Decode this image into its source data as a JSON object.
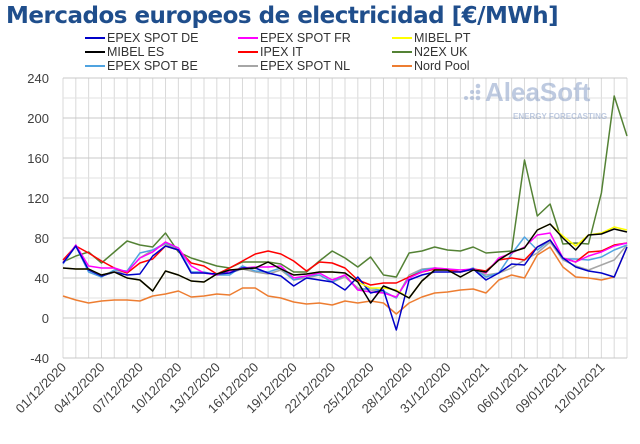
{
  "chart_data": {
    "type": "line",
    "title": "Mercados europeos de electricidad [€/MWh]",
    "watermark": {
      "brand": "AleaSoft",
      "tagline": "ENERGY FORECASTING"
    },
    "ylim": [
      -40,
      240
    ],
    "yticks": [
      -40,
      0,
      40,
      80,
      120,
      160,
      200,
      240
    ],
    "grid": true,
    "legend": "top",
    "xticklabels": [
      "01/12/2020",
      "04/12/2020",
      "07/12/2020",
      "10/12/2020",
      "13/12/2020",
      "16/12/2020",
      "19/12/2020",
      "22/12/2020",
      "25/12/2020",
      "28/12/2020",
      "31/12/2020",
      "03/01/2021",
      "06/01/2021",
      "09/01/2021",
      "12/01/2021"
    ],
    "x": [
      "01/12/2020",
      "02/12/2020",
      "03/12/2020",
      "04/12/2020",
      "05/12/2020",
      "06/12/2020",
      "07/12/2020",
      "08/12/2020",
      "09/12/2020",
      "10/12/2020",
      "11/12/2020",
      "12/12/2020",
      "13/12/2020",
      "14/12/2020",
      "15/12/2020",
      "16/12/2020",
      "17/12/2020",
      "18/12/2020",
      "19/12/2020",
      "20/12/2020",
      "21/12/2020",
      "22/12/2020",
      "23/12/2020",
      "24/12/2020",
      "25/12/2020",
      "26/12/2020",
      "27/12/2020",
      "28/12/2020",
      "29/12/2020",
      "30/12/2020",
      "31/12/2020",
      "01/01/2021",
      "02/01/2021",
      "03/01/2021",
      "04/01/2021",
      "05/01/2021",
      "06/01/2021",
      "07/01/2021",
      "08/01/2021",
      "09/01/2021",
      "10/01/2021",
      "11/01/2021",
      "12/01/2021",
      "13/01/2021",
      "14/01/2021"
    ],
    "series": [
      {
        "name": "EPEX SPOT DE",
        "color": "#0000c8",
        "values": [
          55,
          72,
          48,
          42,
          46,
          43,
          44,
          62,
          72,
          68,
          45,
          45,
          44,
          45,
          50,
          50,
          45,
          42,
          32,
          40,
          38,
          36,
          28,
          41,
          25,
          28,
          -12,
          38,
          43,
          46,
          46,
          46,
          49,
          38,
          45,
          54,
          53,
          71,
          78,
          60,
          51,
          47,
          45,
          41,
          71
        ]
      },
      {
        "name": "EPEX SPOT FR",
        "color": "#ff00ff",
        "values": [
          55,
          73,
          52,
          50,
          50,
          46,
          60,
          66,
          76,
          70,
          52,
          45,
          43,
          47,
          50,
          51,
          51,
          52,
          40,
          42,
          45,
          38,
          43,
          28,
          26,
          25,
          21,
          40,
          46,
          50,
          49,
          48,
          49,
          45,
          60,
          65,
          71,
          83,
          85,
          60,
          56,
          62,
          66,
          72,
          75
        ]
      },
      {
        "name": "MIBEL PT",
        "color": "#ffff00",
        "values": [
          50,
          49,
          49,
          43,
          46,
          40,
          38,
          27,
          47,
          43,
          37,
          36,
          44,
          48,
          49,
          50,
          56,
          49,
          43,
          44,
          46,
          46,
          45,
          36,
          30,
          30,
          28,
          20,
          37,
          48,
          48,
          41,
          48,
          46,
          58,
          66,
          70,
          88,
          94,
          82,
          72,
          83,
          85,
          91,
          88
        ]
      },
      {
        "name": "MIBEL ES",
        "color": "#000000",
        "values": [
          50,
          49,
          49,
          43,
          46,
          40,
          38,
          27,
          47,
          43,
          37,
          36,
          44,
          48,
          49,
          50,
          56,
          49,
          43,
          44,
          46,
          46,
          45,
          36,
          15,
          32,
          27,
          20,
          37,
          48,
          48,
          41,
          48,
          46,
          58,
          66,
          70,
          88,
          94,
          80,
          68,
          83,
          84,
          89,
          86
        ]
      },
      {
        "name": "IPEX IT",
        "color": "#ff0000",
        "values": [
          58,
          72,
          65,
          57,
          50,
          45,
          55,
          59,
          72,
          68,
          55,
          52,
          44,
          50,
          57,
          64,
          67,
          64,
          57,
          47,
          56,
          55,
          50,
          38,
          33,
          35,
          35,
          41,
          46,
          49,
          48,
          46,
          49,
          47,
          58,
          60,
          58,
          71,
          78,
          60,
          56,
          66,
          67,
          73,
          75
        ]
      },
      {
        "name": "N2EX UK",
        "color": "#548235",
        "values": [
          56,
          62,
          66,
          55,
          66,
          77,
          73,
          71,
          85,
          66,
          60,
          56,
          52,
          50,
          56,
          56,
          56,
          54,
          46,
          46,
          57,
          67,
          60,
          51,
          61,
          43,
          41,
          65,
          67,
          71,
          68,
          67,
          71,
          65,
          66,
          67,
          158,
          102,
          114,
          74,
          75,
          74,
          125,
          222,
          182
        ]
      },
      {
        "name": "EPEX SPOT BE",
        "color": "#4fa3e0",
        "values": [
          54,
          72,
          46,
          41,
          48,
          47,
          65,
          68,
          75,
          70,
          46,
          46,
          43,
          43,
          52,
          47,
          46,
          50,
          38,
          42,
          43,
          36,
          43,
          28,
          30,
          27,
          20,
          41,
          48,
          50,
          48,
          46,
          50,
          41,
          45,
          64,
          81,
          68,
          78,
          59,
          59,
          58,
          61,
          68,
          73
        ]
      },
      {
        "name": "EPEX SPOT NL",
        "color": "#a6a6a6",
        "values": [
          55,
          73,
          48,
          42,
          46,
          46,
          60,
          68,
          74,
          68,
          46,
          45,
          43,
          45,
          49,
          46,
          44,
          48,
          38,
          40,
          43,
          36,
          41,
          30,
          28,
          26,
          20,
          43,
          49,
          50,
          49,
          46,
          49,
          43,
          45,
          50,
          58,
          65,
          76,
          58,
          52,
          48,
          53,
          58,
          73
        ]
      },
      {
        "name": "Nord Pool",
        "color": "#ed7d31",
        "values": [
          22,
          18,
          15,
          17,
          18,
          18,
          17,
          22,
          24,
          27,
          21,
          22,
          24,
          23,
          30,
          30,
          22,
          20,
          16,
          14,
          15,
          13,
          17,
          15,
          17,
          15,
          4,
          15,
          21,
          25,
          26,
          28,
          29,
          25,
          38,
          43,
          40,
          63,
          71,
          51,
          41,
          40,
          38,
          41,
          71
        ]
      }
    ]
  }
}
